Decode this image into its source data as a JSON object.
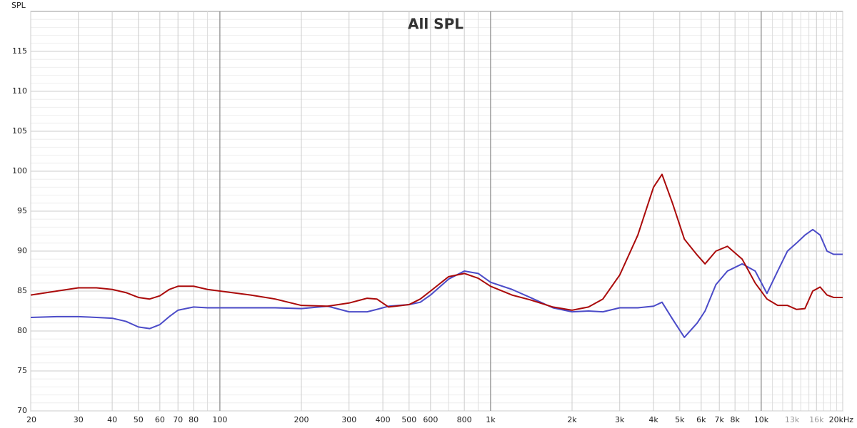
{
  "chart_data": {
    "type": "line",
    "title": "All SPL",
    "y_label": "SPL",
    "log_x": true,
    "grid": true,
    "xlim": [
      20,
      20000
    ],
    "ylim": [
      70,
      120
    ],
    "yticks": [
      70,
      75,
      80,
      85,
      90,
      95,
      100,
      105,
      110,
      115
    ],
    "yminor": [
      71,
      72,
      73,
      74,
      76,
      77,
      78,
      79,
      81,
      82,
      83,
      84,
      86,
      87,
      88,
      89,
      91,
      92,
      93,
      94,
      96,
      97,
      98,
      99,
      101,
      102,
      103,
      104,
      106,
      107,
      108,
      109,
      111,
      112,
      113,
      114,
      116,
      117,
      118,
      119
    ],
    "xticks": [
      20,
      30,
      40,
      50,
      60,
      70,
      80,
      100,
      200,
      300,
      400,
      500,
      600,
      800,
      {
        "value": 1000,
        "label": "1k"
      },
      {
        "value": 2000,
        "label": "2k"
      },
      {
        "value": 3000,
        "label": "3k"
      },
      {
        "value": 4000,
        "label": "4k"
      },
      {
        "value": 5000,
        "label": "5k"
      },
      {
        "value": 6000,
        "label": "6k"
      },
      {
        "value": 7000,
        "label": "7k"
      },
      {
        "value": 8000,
        "label": "8k"
      },
      {
        "value": 10000,
        "label": "10k"
      },
      {
        "value": 13000,
        "label": "13k"
      },
      {
        "value": 16000,
        "label": "16k"
      },
      {
        "value": 20000,
        "label": "20kHz"
      }
    ],
    "xmajor": [
      100,
      1000,
      10000
    ],
    "xminor": [
      90,
      700,
      900,
      9000,
      11000,
      12000,
      14000,
      15000,
      17000,
      18000,
      19000
    ],
    "x": [
      20,
      25,
      30,
      35,
      40,
      45,
      50,
      55,
      60,
      65,
      70,
      80,
      90,
      100,
      130,
      160,
      200,
      250,
      300,
      350,
      380,
      420,
      500,
      550,
      600,
      700,
      800,
      900,
      1000,
      1200,
      1400,
      1700,
      2000,
      2300,
      2600,
      3000,
      3500,
      4000,
      4300,
      4700,
      5200,
      5800,
      6200,
      6800,
      7500,
      8500,
      9500,
      10500,
      11500,
      12500,
      13500,
      14500,
      15500,
      16500,
      17500,
      18500,
      20000
    ],
    "series": [
      {
        "color": "#aa0a0a",
        "values": [
          84.5,
          85,
          85.4,
          85.4,
          85.2,
          84.8,
          84.2,
          84,
          84.4,
          85.2,
          85.6,
          85.6,
          85.2,
          85,
          84.5,
          84,
          83.2,
          83.1,
          83.5,
          84.1,
          84,
          83,
          83.3,
          84,
          85,
          86.8,
          87.2,
          86.6,
          85.6,
          84.5,
          83.9,
          83,
          82.6,
          83,
          84,
          87,
          92,
          98,
          99.6,
          96,
          91.5,
          89.5,
          88.4,
          90,
          90.6,
          89,
          86,
          84,
          83.2,
          83.2,
          82.7,
          82.8,
          85,
          85.5,
          84.5,
          84.2,
          84.2
        ]
      },
      {
        "color": "#4b4bc8",
        "values": [
          81.7,
          81.8,
          81.8,
          81.7,
          81.6,
          81.2,
          80.5,
          80.3,
          80.8,
          81.8,
          82.6,
          83,
          82.9,
          82.9,
          82.9,
          82.9,
          82.8,
          83.1,
          82.4,
          82.4,
          82.7,
          83.1,
          83.3,
          83.6,
          84.5,
          86.5,
          87.5,
          87.2,
          86.1,
          85.2,
          84.2,
          82.9,
          82.4,
          82.5,
          82.4,
          82.9,
          82.9,
          83.1,
          83.6,
          81.5,
          79.2,
          81,
          82.5,
          85.8,
          87.5,
          88.4,
          87.5,
          84.7,
          87.5,
          90,
          91,
          92,
          92.7,
          92,
          90,
          89.6,
          89.6
        ]
      }
    ]
  }
}
